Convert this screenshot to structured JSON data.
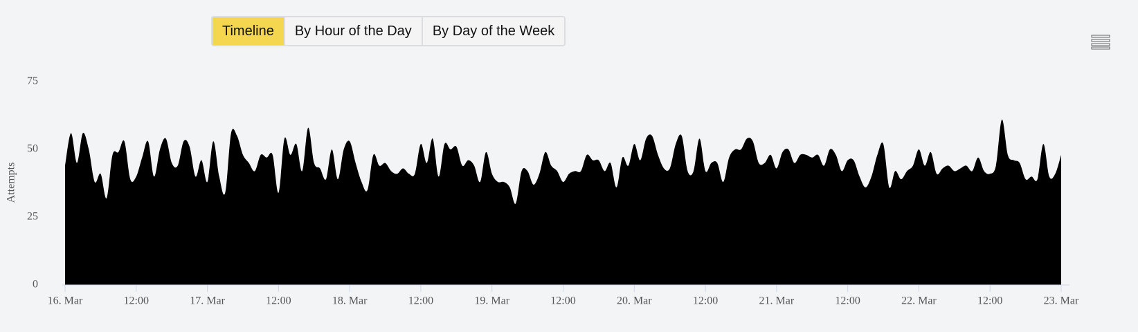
{
  "tabs": [
    "Timeline",
    "By Hour of the Day",
    "By Day of the Week"
  ],
  "chart_data": {
    "type": "area",
    "y_label": "Attempts",
    "color": "#000000",
    "x": [
      "16 Mar 00:00",
      "16 Mar 01:00",
      "16 Mar 02:00",
      "16 Mar 03:00",
      "16 Mar 04:00",
      "16 Mar 05:00",
      "16 Mar 06:00",
      "16 Mar 07:00",
      "16 Mar 08:00",
      "16 Mar 09:00",
      "16 Mar 10:00",
      "16 Mar 11:00",
      "16 Mar 12:00",
      "16 Mar 13:00",
      "16 Mar 14:00",
      "16 Mar 15:00",
      "16 Mar 16:00",
      "16 Mar 17:00",
      "16 Mar 18:00",
      "16 Mar 19:00",
      "16 Mar 20:00",
      "16 Mar 21:00",
      "16 Mar 22:00",
      "16 Mar 23:00",
      "17 Mar 00:00",
      "17 Mar 01:00",
      "17 Mar 02:00",
      "17 Mar 03:00",
      "17 Mar 04:00",
      "17 Mar 05:00",
      "17 Mar 06:00",
      "17 Mar 07:00",
      "17 Mar 08:00",
      "17 Mar 09:00",
      "17 Mar 10:00",
      "17 Mar 11:00",
      "17 Mar 12:00",
      "17 Mar 13:00",
      "17 Mar 14:00",
      "17 Mar 15:00",
      "17 Mar 16:00",
      "17 Mar 17:00",
      "17 Mar 18:00",
      "17 Mar 19:00",
      "17 Mar 20:00",
      "17 Mar 21:00",
      "17 Mar 22:00",
      "17 Mar 23:00",
      "18 Mar 00:00",
      "18 Mar 01:00",
      "18 Mar 02:00",
      "18 Mar 03:00",
      "18 Mar 04:00",
      "18 Mar 05:00",
      "18 Mar 06:00",
      "18 Mar 07:00",
      "18 Mar 08:00",
      "18 Mar 09:00",
      "18 Mar 10:00",
      "18 Mar 11:00",
      "18 Mar 12:00",
      "18 Mar 13:00",
      "18 Mar 14:00",
      "18 Mar 15:00",
      "18 Mar 16:00",
      "18 Mar 17:00",
      "18 Mar 18:00",
      "18 Mar 19:00",
      "18 Mar 20:00",
      "18 Mar 21:00",
      "18 Mar 22:00",
      "18 Mar 23:00",
      "19 Mar 00:00",
      "19 Mar 01:00",
      "19 Mar 02:00",
      "19 Mar 03:00",
      "19 Mar 04:00",
      "19 Mar 05:00",
      "19 Mar 06:00",
      "19 Mar 07:00",
      "19 Mar 08:00",
      "19 Mar 09:00",
      "19 Mar 10:00",
      "19 Mar 11:00",
      "19 Mar 12:00",
      "19 Mar 13:00",
      "19 Mar 14:00",
      "19 Mar 15:00",
      "19 Mar 16:00",
      "19 Mar 17:00",
      "19 Mar 18:00",
      "19 Mar 19:00",
      "19 Mar 20:00",
      "19 Mar 21:00",
      "19 Mar 22:00",
      "19 Mar 23:00",
      "20 Mar 00:00",
      "20 Mar 01:00",
      "20 Mar 02:00",
      "20 Mar 03:00",
      "20 Mar 04:00",
      "20 Mar 05:00",
      "20 Mar 06:00",
      "20 Mar 07:00",
      "20 Mar 08:00",
      "20 Mar 09:00",
      "20 Mar 10:00",
      "20 Mar 11:00",
      "20 Mar 12:00",
      "20 Mar 13:00",
      "20 Mar 14:00",
      "20 Mar 15:00",
      "20 Mar 16:00",
      "20 Mar 17:00",
      "20 Mar 18:00",
      "20 Mar 19:00",
      "20 Mar 20:00",
      "20 Mar 21:00",
      "20 Mar 22:00",
      "20 Mar 23:00",
      "21 Mar 00:00",
      "21 Mar 01:00",
      "21 Mar 02:00",
      "21 Mar 03:00",
      "21 Mar 04:00",
      "21 Mar 05:00",
      "21 Mar 06:00",
      "21 Mar 07:00",
      "21 Mar 08:00",
      "21 Mar 09:00",
      "21 Mar 10:00",
      "21 Mar 11:00",
      "21 Mar 12:00",
      "21 Mar 13:00",
      "21 Mar 14:00",
      "21 Mar 15:00",
      "21 Mar 16:00",
      "21 Mar 17:00",
      "21 Mar 18:00",
      "21 Mar 19:00",
      "21 Mar 20:00",
      "21 Mar 21:00",
      "21 Mar 22:00",
      "21 Mar 23:00",
      "22 Mar 00:00",
      "22 Mar 01:00",
      "22 Mar 02:00",
      "22 Mar 03:00",
      "22 Mar 04:00",
      "22 Mar 05:00",
      "22 Mar 06:00",
      "22 Mar 07:00",
      "22 Mar 08:00",
      "22 Mar 09:00",
      "22 Mar 10:00",
      "22 Mar 11:00",
      "22 Mar 12:00",
      "22 Mar 13:00",
      "22 Mar 14:00",
      "22 Mar 15:00",
      "22 Mar 16:00",
      "22 Mar 17:00",
      "22 Mar 18:00",
      "22 Mar 19:00",
      "22 Mar 20:00",
      "22 Mar 21:00",
      "22 Mar 22:00",
      "22 Mar 23:00",
      "23 Mar 00:00"
    ],
    "values": [
      44,
      56,
      45,
      56,
      50,
      38,
      41,
      32,
      48,
      49,
      53,
      39,
      40,
      47,
      53,
      40,
      50,
      54,
      45,
      44,
      53,
      51,
      40,
      46,
      38,
      53,
      40,
      34,
      56,
      55,
      48,
      45,
      42,
      48,
      47,
      48,
      34,
      54,
      48,
      52,
      42,
      58,
      45,
      43,
      39,
      50,
      39,
      50,
      53,
      45,
      38,
      35,
      48,
      44,
      45,
      42,
      41,
      43,
      41,
      41,
      52,
      45,
      54,
      40,
      52,
      50,
      51,
      44,
      46,
      44,
      38,
      49,
      41,
      38,
      38,
      36,
      30,
      42,
      42,
      37,
      41,
      49,
      44,
      42,
      38,
      41,
      42,
      42,
      48,
      46,
      46,
      42,
      45,
      36,
      47,
      44,
      52,
      46,
      54,
      55,
      48,
      43,
      43,
      52,
      55,
      42,
      42,
      54,
      42,
      45,
      45,
      38,
      47,
      50,
      50,
      54,
      53,
      45,
      45,
      48,
      43,
      49,
      50,
      45,
      48,
      48,
      47,
      48,
      44,
      50,
      48,
      42,
      46,
      46,
      40,
      36,
      40,
      48,
      52,
      36,
      42,
      39,
      42,
      44,
      50,
      44,
      49,
      41,
      43,
      44,
      42,
      43,
      44,
      42,
      47,
      42,
      41,
      44,
      61,
      48,
      46,
      45,
      39,
      40,
      39,
      52,
      40,
      41,
      48
    ],
    "xlim": [
      "16 Mar 00:00",
      "23 Mar 00:00"
    ],
    "xticks": [
      {
        "value": "16 Mar 00:00",
        "label": "16. Mar"
      },
      {
        "value": "16 Mar 12:00",
        "label": "12:00"
      },
      {
        "value": "17 Mar 00:00",
        "label": "17. Mar"
      },
      {
        "value": "17 Mar 12:00",
        "label": "12:00"
      },
      {
        "value": "18 Mar 00:00",
        "label": "18. Mar"
      },
      {
        "value": "18 Mar 12:00",
        "label": "12:00"
      },
      {
        "value": "19 Mar 00:00",
        "label": "19. Mar"
      },
      {
        "value": "19 Mar 12:00",
        "label": "12:00"
      },
      {
        "value": "20 Mar 00:00",
        "label": "20. Mar"
      },
      {
        "value": "20 Mar 12:00",
        "label": "12:00"
      },
      {
        "value": "21 Mar 00:00",
        "label": "21. Mar"
      },
      {
        "value": "21 Mar 12:00",
        "label": "12:00"
      },
      {
        "value": "22 Mar 00:00",
        "label": "22. Mar"
      },
      {
        "value": "22 Mar 12:00",
        "label": "12:00"
      },
      {
        "value": "23 Mar 00:00",
        "label": "23. Mar"
      }
    ],
    "ylim": [
      0,
      75
    ],
    "yticks": [
      0,
      25,
      50,
      75
    ]
  }
}
